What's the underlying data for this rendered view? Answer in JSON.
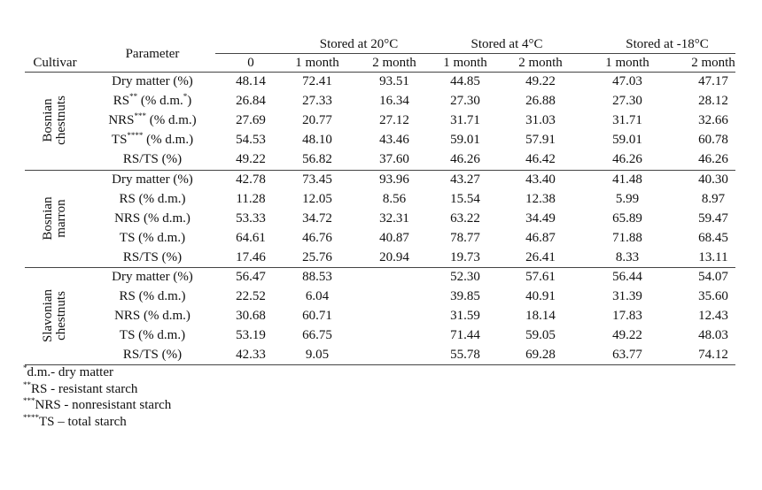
{
  "header": {
    "cultivar": "Cultivar",
    "parameter": "Parameter",
    "groups": [
      {
        "label": "Stored at 20°C",
        "columns": [
          "0",
          "1 month",
          "2 month"
        ]
      },
      {
        "label": "Stored at 4°C",
        "columns": [
          "1 month",
          "2 month"
        ]
      },
      {
        "label": "Stored at -18°C",
        "columns": [
          "1 month",
          "2 month"
        ]
      }
    ]
  },
  "table": {
    "sections": [
      {
        "cultivar": [
          "Bosnian",
          "chestnuts"
        ],
        "rows": [
          {
            "parameter": [
              {
                "text": "Dry matter (%)"
              }
            ],
            "values": [
              "48.14",
              "72.41",
              "93.51",
              "44.85",
              "49.22",
              "47.03",
              "47.17"
            ]
          },
          {
            "parameter": [
              {
                "text": "RS"
              },
              {
                "sup": "**"
              },
              {
                "text": " (% d.m."
              },
              {
                "sup": "*"
              },
              {
                "text": ")"
              }
            ],
            "values": [
              "26.84",
              "27.33",
              "16.34",
              "27.30",
              "26.88",
              "27.30",
              "28.12"
            ]
          },
          {
            "parameter": [
              {
                "text": "NRS"
              },
              {
                "sup": "***"
              },
              {
                "text": " (% d.m.)"
              }
            ],
            "values": [
              "27.69",
              "20.77",
              "27.12",
              "31.71",
              "31.03",
              "31.71",
              "32.66"
            ]
          },
          {
            "parameter": [
              {
                "text": "TS"
              },
              {
                "sup": "****"
              },
              {
                "text": " (% d.m.)"
              }
            ],
            "values": [
              "54.53",
              "48.10",
              "43.46",
              "59.01",
              "57.91",
              "59.01",
              "60.78"
            ]
          },
          {
            "parameter": [
              {
                "text": "RS/TS (%)"
              }
            ],
            "values": [
              "49.22",
              "56.82",
              "37.60",
              "46.26",
              "46.42",
              "46.26",
              "46.26"
            ]
          }
        ]
      },
      {
        "cultivar": [
          "Bosnian",
          "marron"
        ],
        "rows": [
          {
            "parameter": [
              {
                "text": "Dry matter (%)"
              }
            ],
            "values": [
              "42.78",
              "73.45",
              "93.96",
              "43.27",
              "43.40",
              "41.48",
              "40.30"
            ]
          },
          {
            "parameter": [
              {
                "text": "RS (% d.m.)"
              }
            ],
            "values": [
              "11.28",
              "12.05",
              "8.56",
              "15.54",
              "12.38",
              "5.99",
              "8.97"
            ]
          },
          {
            "parameter": [
              {
                "text": "NRS (% d.m.)"
              }
            ],
            "values": [
              "53.33",
              "34.72",
              "32.31",
              "63.22",
              "34.49",
              "65.89",
              "59.47"
            ]
          },
          {
            "parameter": [
              {
                "text": "TS (% d.m.)"
              }
            ],
            "values": [
              "64.61",
              "46.76",
              "40.87",
              "78.77",
              "46.87",
              "71.88",
              "68.45"
            ]
          },
          {
            "parameter": [
              {
                "text": "RS/TS (%)"
              }
            ],
            "values": [
              "17.46",
              "25.76",
              "20.94",
              "19.73",
              "26.41",
              "8.33",
              "13.11"
            ]
          }
        ]
      },
      {
        "cultivar": [
          "Slavonian",
          "chestnuts"
        ],
        "rows": [
          {
            "parameter": [
              {
                "text": "Dry matter (%)"
              }
            ],
            "values": [
              "56.47",
              "88.53",
              null,
              "52.30",
              "57.61",
              "56.44",
              "54.07"
            ]
          },
          {
            "parameter": [
              {
                "text": "RS (% d.m.)"
              }
            ],
            "values": [
              "22.52",
              "6.04",
              null,
              "39.85",
              "40.91",
              "31.39",
              "35.60"
            ]
          },
          {
            "parameter": [
              {
                "text": "NRS (% d.m.)"
              }
            ],
            "values": [
              "30.68",
              "60.71",
              null,
              "31.59",
              "18.14",
              "17.83",
              "12.43"
            ]
          },
          {
            "parameter": [
              {
                "text": "TS (% d.m.)"
              }
            ],
            "values": [
              "53.19",
              "66.75",
              null,
              "71.44",
              "59.05",
              "49.22",
              "48.03"
            ]
          },
          {
            "parameter": [
              {
                "text": "RS/TS (%)"
              }
            ],
            "values": [
              "42.33",
              "9.05",
              null,
              "55.78",
              "69.28",
              "63.77",
              "74.12"
            ]
          }
        ]
      }
    ]
  },
  "footnotes": [
    [
      {
        "sup": "*"
      },
      {
        "text": "d.m.- dry matter"
      }
    ],
    [
      {
        "sup": "**"
      },
      {
        "text": "RS - resistant starch"
      }
    ],
    [
      {
        "sup": "***"
      },
      {
        "text": "NRS - nonresistant starch"
      }
    ],
    [
      {
        "sup": "****"
      },
      {
        "text": "TS – total starch"
      }
    ]
  ]
}
